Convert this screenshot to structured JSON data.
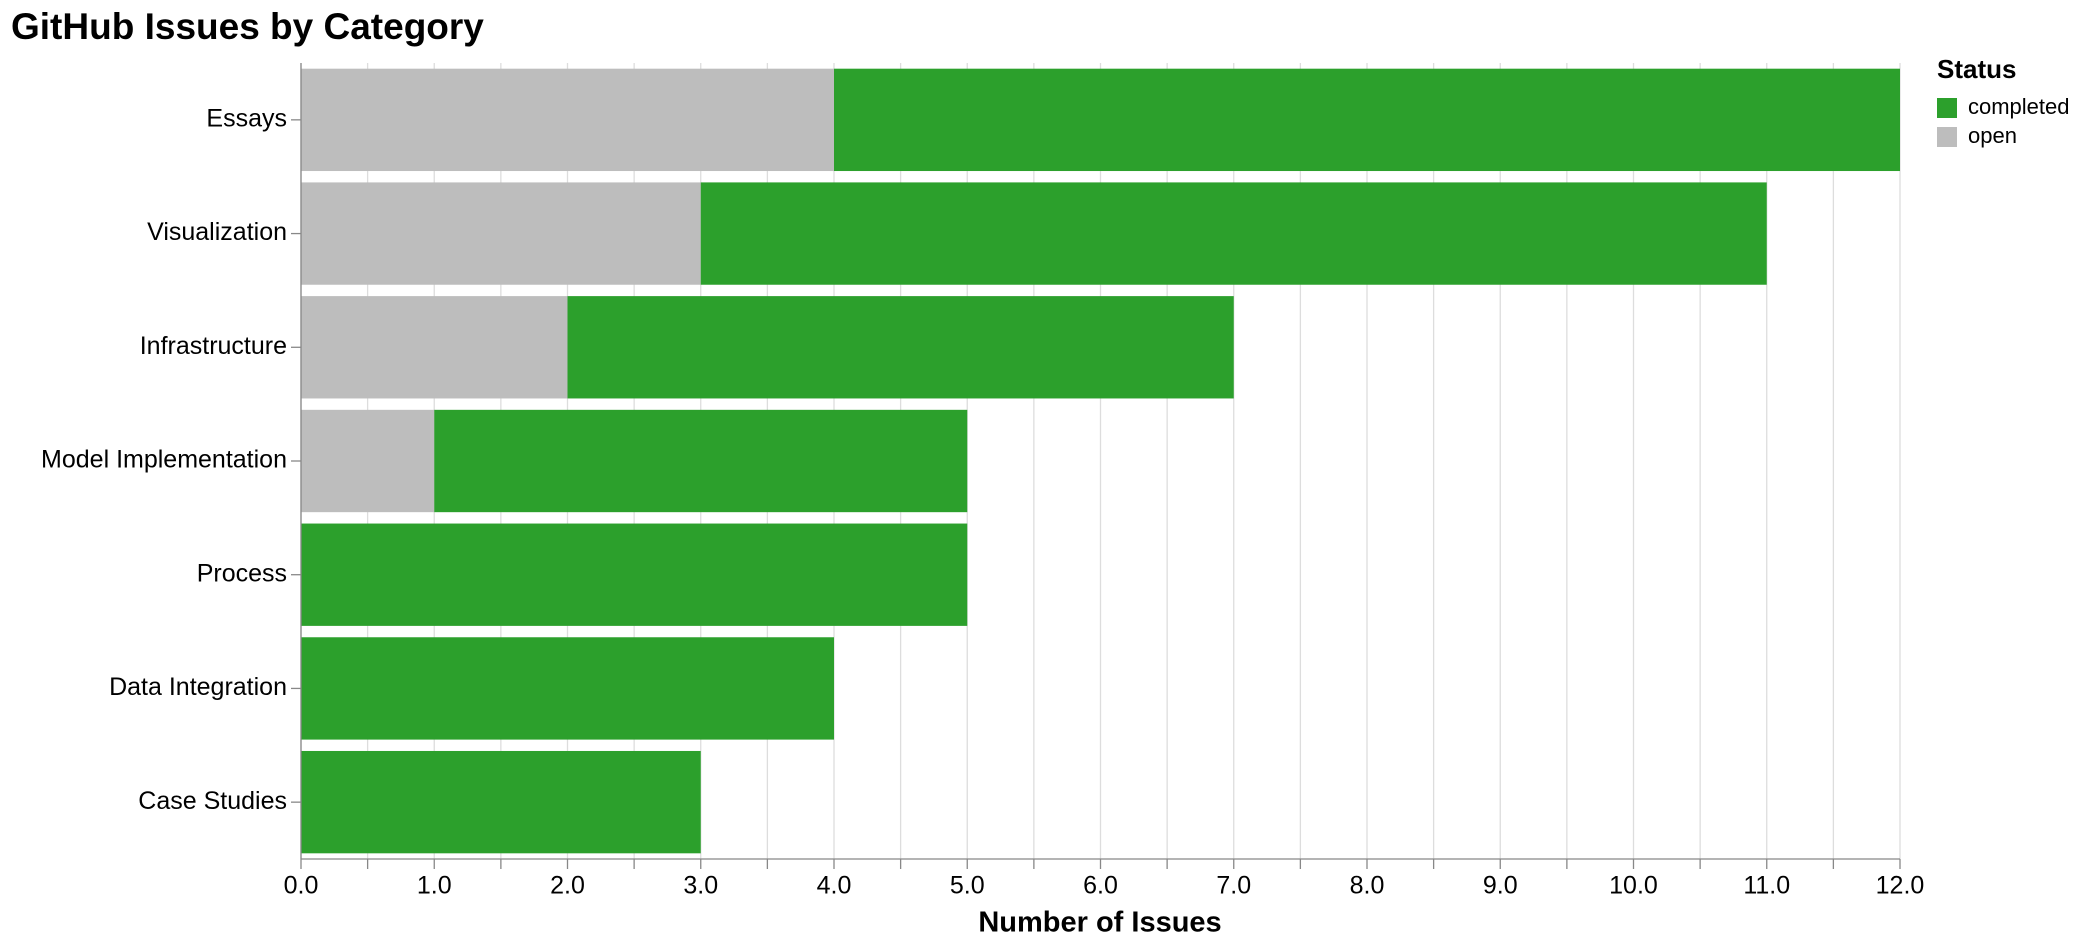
{
  "chart_data": {
    "type": "stacked-hbar",
    "title": "GitHub Issues by Category",
    "x_label": "Number of Issues",
    "legend_title": "Status",
    "categories": [
      "Essays",
      "Visualization",
      "Infrastructure",
      "Model Implementation",
      "Process",
      "Data Integration",
      "Case Studies"
    ],
    "series": [
      {
        "name": "completed",
        "color": "#2ca02c",
        "values": [
          8,
          8,
          5,
          4,
          5,
          4,
          3
        ]
      },
      {
        "name": "open",
        "color": "#bdbdbd",
        "values": [
          4,
          3,
          2,
          1,
          0,
          0,
          0
        ]
      }
    ],
    "xlim": [
      0,
      12
    ],
    "xticks": [
      {
        "value": 0,
        "label": "0.0"
      },
      {
        "value": 1,
        "label": "1.0"
      },
      {
        "value": 2,
        "label": "2.0"
      },
      {
        "value": 3,
        "label": "3.0"
      },
      {
        "value": 4,
        "label": "4.0"
      },
      {
        "value": 5,
        "label": "5.0"
      },
      {
        "value": 6,
        "label": "6.0"
      },
      {
        "value": 7,
        "label": "7.0"
      },
      {
        "value": 8,
        "label": "8.0"
      },
      {
        "value": 9,
        "label": "9.0"
      },
      {
        "value": 10,
        "label": "10.0"
      },
      {
        "value": 11,
        "label": "11.0"
      },
      {
        "value": 12,
        "label": "12.0"
      }
    ],
    "minor_xticks": [
      0.5,
      1.5,
      2.5,
      3.5,
      4.5,
      5.5,
      6.5,
      7.5,
      8.5,
      9.5,
      10.5,
      11.5
    ],
    "grid": true,
    "legend_position": "top-right"
  }
}
